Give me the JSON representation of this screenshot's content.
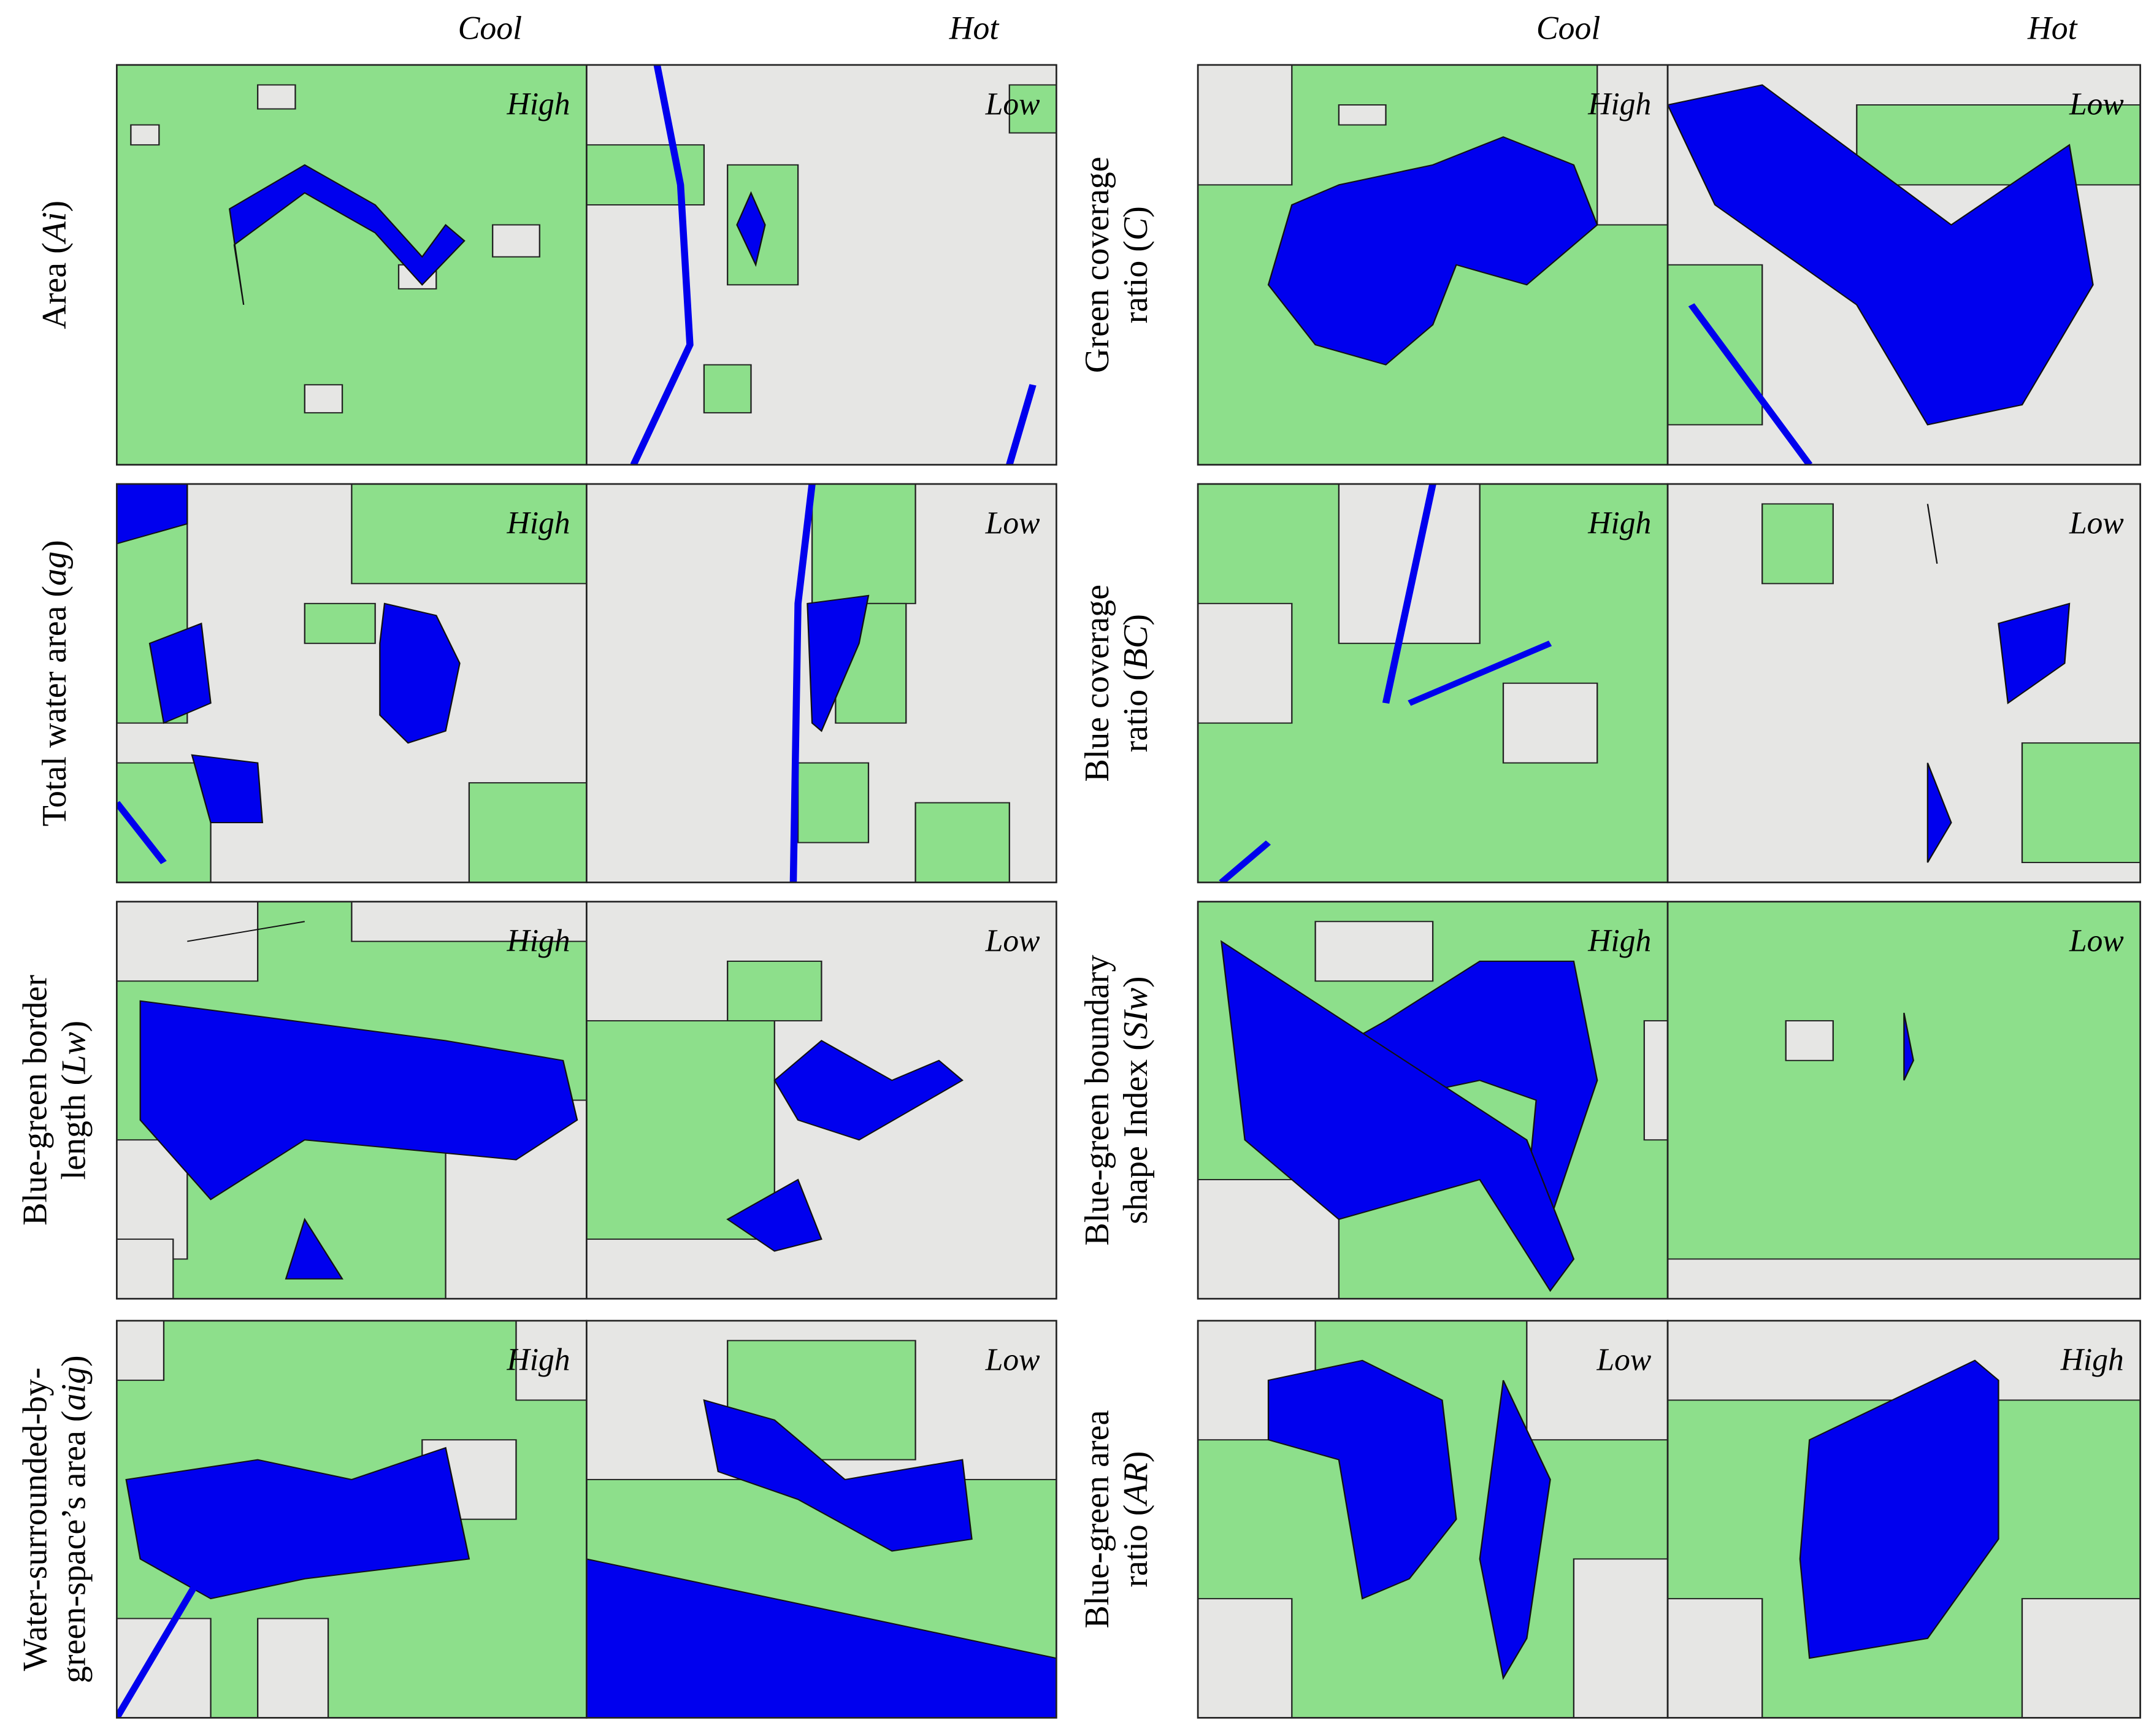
{
  "column_headers": {
    "left": [
      "Cool",
      "Hot"
    ],
    "right": [
      "Cool",
      "Hot"
    ]
  },
  "left_rows": [
    {
      "label": [
        "Area (Ai)"
      ],
      "tags": [
        "High",
        "Low"
      ]
    },
    {
      "label": [
        "Total water area (ag)"
      ],
      "tags": [
        "High",
        "Low"
      ]
    },
    {
      "label": [
        "Blue-green border",
        "length (Lw)"
      ],
      "tags": [
        "High",
        "Low"
      ]
    },
    {
      "label": [
        "Water-surrounded-by-",
        "green-space’s area (aig)"
      ],
      "tags": [
        "High",
        "Low"
      ]
    }
  ],
  "right_rows": [
    {
      "label": [
        "Green coverage",
        "ratio (C)"
      ],
      "tags": [
        "High",
        "Low"
      ]
    },
    {
      "label": [
        "Blue coverage",
        "ratio (BC)"
      ],
      "tags": [
        "High",
        "Low"
      ]
    },
    {
      "label": [
        "Blue-green boundary",
        "shape Index (SIw)"
      ],
      "tags": [
        "High",
        "Low"
      ]
    },
    {
      "label": [
        "Blue-green area",
        "ratio (AR)"
      ],
      "tags": [
        "Low",
        "High"
      ]
    }
  ]
}
